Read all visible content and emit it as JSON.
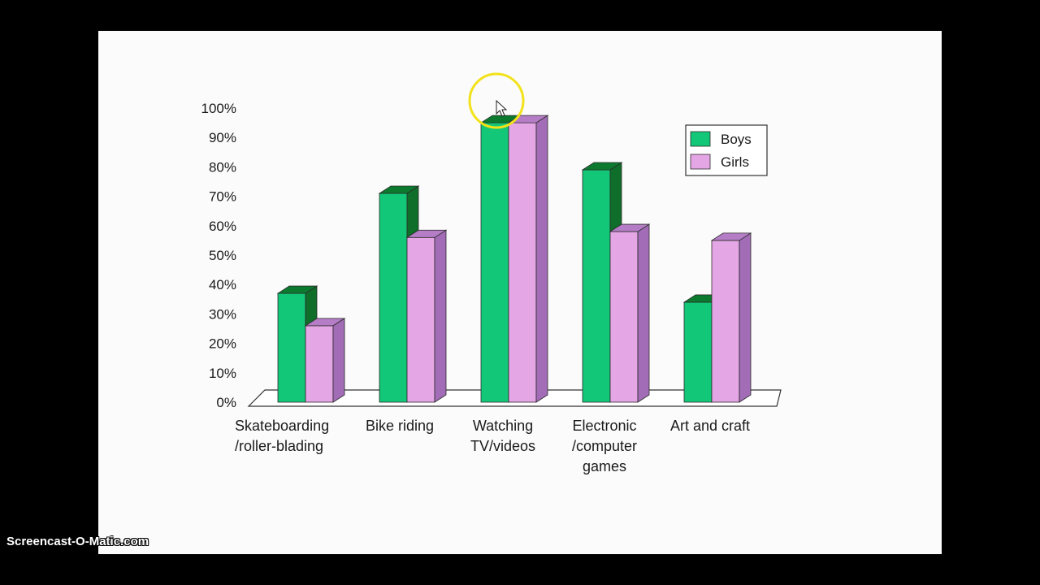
{
  "watermark": "Screencast-O-Matic.com",
  "colors": {
    "boys_front": "#12c777",
    "boys_side": "#0e6e2a",
    "boys_top": "#0b7a2e",
    "girls_front": "#e4a6e4",
    "girls_side": "#a26db6",
    "girls_top": "#b57dc6",
    "cursor_ring": "#f2e21a"
  },
  "chart_data": {
    "type": "bar",
    "title": "",
    "xlabel": "",
    "ylabel": "",
    "ylim": [
      0,
      100
    ],
    "yticks": [
      "0%",
      "10%",
      "20%",
      "30%",
      "40%",
      "50%",
      "60%",
      "70%",
      "80%",
      "90%",
      "100%"
    ],
    "categories": [
      [
        "Skateboarding",
        "/roller-blading"
      ],
      [
        "Bike riding"
      ],
      [
        "Watching",
        "TV/videos"
      ],
      [
        "Electronic",
        "/computer",
        "games"
      ],
      [
        "Art and craft"
      ]
    ],
    "series": [
      {
        "name": "Boys",
        "values": [
          37,
          71,
          95,
          79,
          34
        ]
      },
      {
        "name": "Girls",
        "values": [
          26,
          56,
          95,
          58,
          55
        ]
      }
    ],
    "legend_position": "top-right",
    "grid": false,
    "style": "3d"
  }
}
